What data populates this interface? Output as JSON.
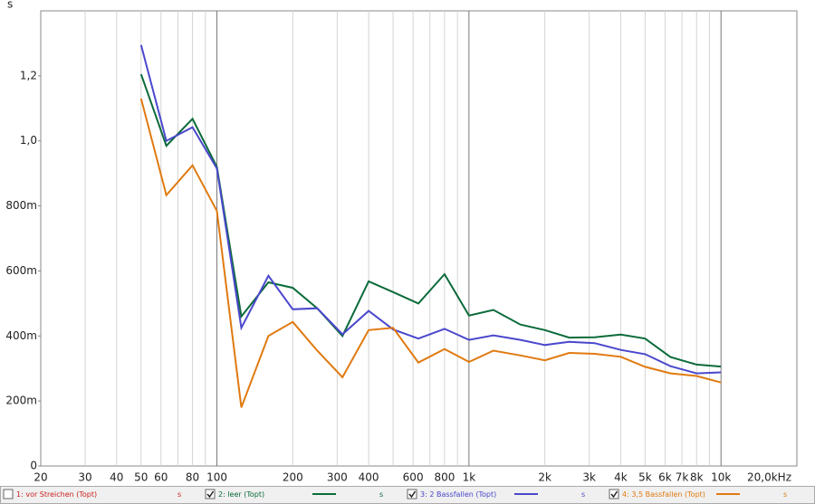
{
  "chart_data": {
    "type": "line",
    "y_label": "s",
    "xscale": "log",
    "grid": true,
    "xlim": [
      20,
      20000
    ],
    "ylim": [
      0,
      1.4
    ],
    "xticks": [
      20,
      30,
      40,
      50,
      60,
      80,
      100,
      200,
      300,
      400,
      600,
      800,
      {
        "value": 1000,
        "label": "1k"
      },
      {
        "value": 2000,
        "label": "2k"
      },
      {
        "value": 3000,
        "label": "3k"
      },
      {
        "value": 4000,
        "label": "4k"
      },
      {
        "value": 5000,
        "label": "5k"
      },
      {
        "value": 6000,
        "label": "6k"
      },
      {
        "value": 7000,
        "label": "7k"
      },
      {
        "value": 8000,
        "label": "8k"
      },
      {
        "value": 10000,
        "label": "10k"
      },
      {
        "value": 20000,
        "label": "20,0kHz"
      }
    ],
    "xminorticks": [
      70,
      90,
      500,
      700,
      900,
      9000
    ],
    "yticks": [
      0,
      {
        "value": 0.2,
        "label": "200m"
      },
      {
        "value": 0.4,
        "label": "400m"
      },
      {
        "value": 0.6,
        "label": "600m"
      },
      {
        "value": 0.8,
        "label": "800m"
      },
      {
        "value": 1.0,
        "label": "1,0"
      },
      {
        "value": 1.2,
        "label": "1,2"
      }
    ],
    "x": [
      50,
      63,
      80,
      100,
      125,
      160,
      200,
      250,
      315,
      400,
      500,
      630,
      800,
      1000,
      1250,
      1600,
      2000,
      2500,
      3150,
      4000,
      5000,
      6300,
      8000,
      10000
    ],
    "series": [
      {
        "name": "1: vor Streichen (Topt)",
        "color": "#cc2222",
        "checked": false,
        "unit": "s",
        "values": [
          null,
          null,
          null,
          null,
          null,
          null,
          null,
          null,
          null,
          null,
          null,
          null,
          null,
          null,
          null,
          null,
          null,
          null,
          null,
          null,
          null,
          null,
          null,
          null
        ]
      },
      {
        "name": "2: leer (Topt)",
        "color": "#0b6b3a",
        "checked": true,
        "unit": "s",
        "values": [
          1.205,
          0.985,
          1.068,
          0.92,
          0.46,
          0.565,
          0.548,
          0.485,
          0.4,
          0.568,
          0.535,
          0.5,
          0.59,
          0.463,
          0.48,
          0.435,
          0.418,
          0.395,
          0.396,
          0.404,
          0.392,
          0.335,
          0.312,
          0.306
        ]
      },
      {
        "name": "3: 2 Bassfallen (Topt)",
        "color": "#4a48cc",
        "checked": true,
        "unit": "s",
        "values": [
          1.295,
          1.0,
          1.042,
          0.915,
          0.425,
          0.585,
          0.482,
          0.485,
          0.405,
          0.477,
          0.42,
          0.392,
          0.422,
          0.388,
          0.402,
          0.388,
          0.372,
          0.382,
          0.378,
          0.357,
          0.344,
          0.307,
          0.285,
          0.288
        ]
      },
      {
        "name": "4: 3,5 Bassfallen (Topt)",
        "color": "#e07a10",
        "checked": true,
        "unit": "s",
        "values": [
          1.13,
          0.833,
          0.925,
          0.785,
          0.18,
          0.4,
          0.443,
          0.355,
          0.273,
          0.418,
          0.425,
          0.318,
          0.36,
          0.32,
          0.355,
          0.34,
          0.325,
          0.348,
          0.345,
          0.336,
          0.305,
          0.285,
          0.277,
          0.257
        ]
      }
    ]
  }
}
